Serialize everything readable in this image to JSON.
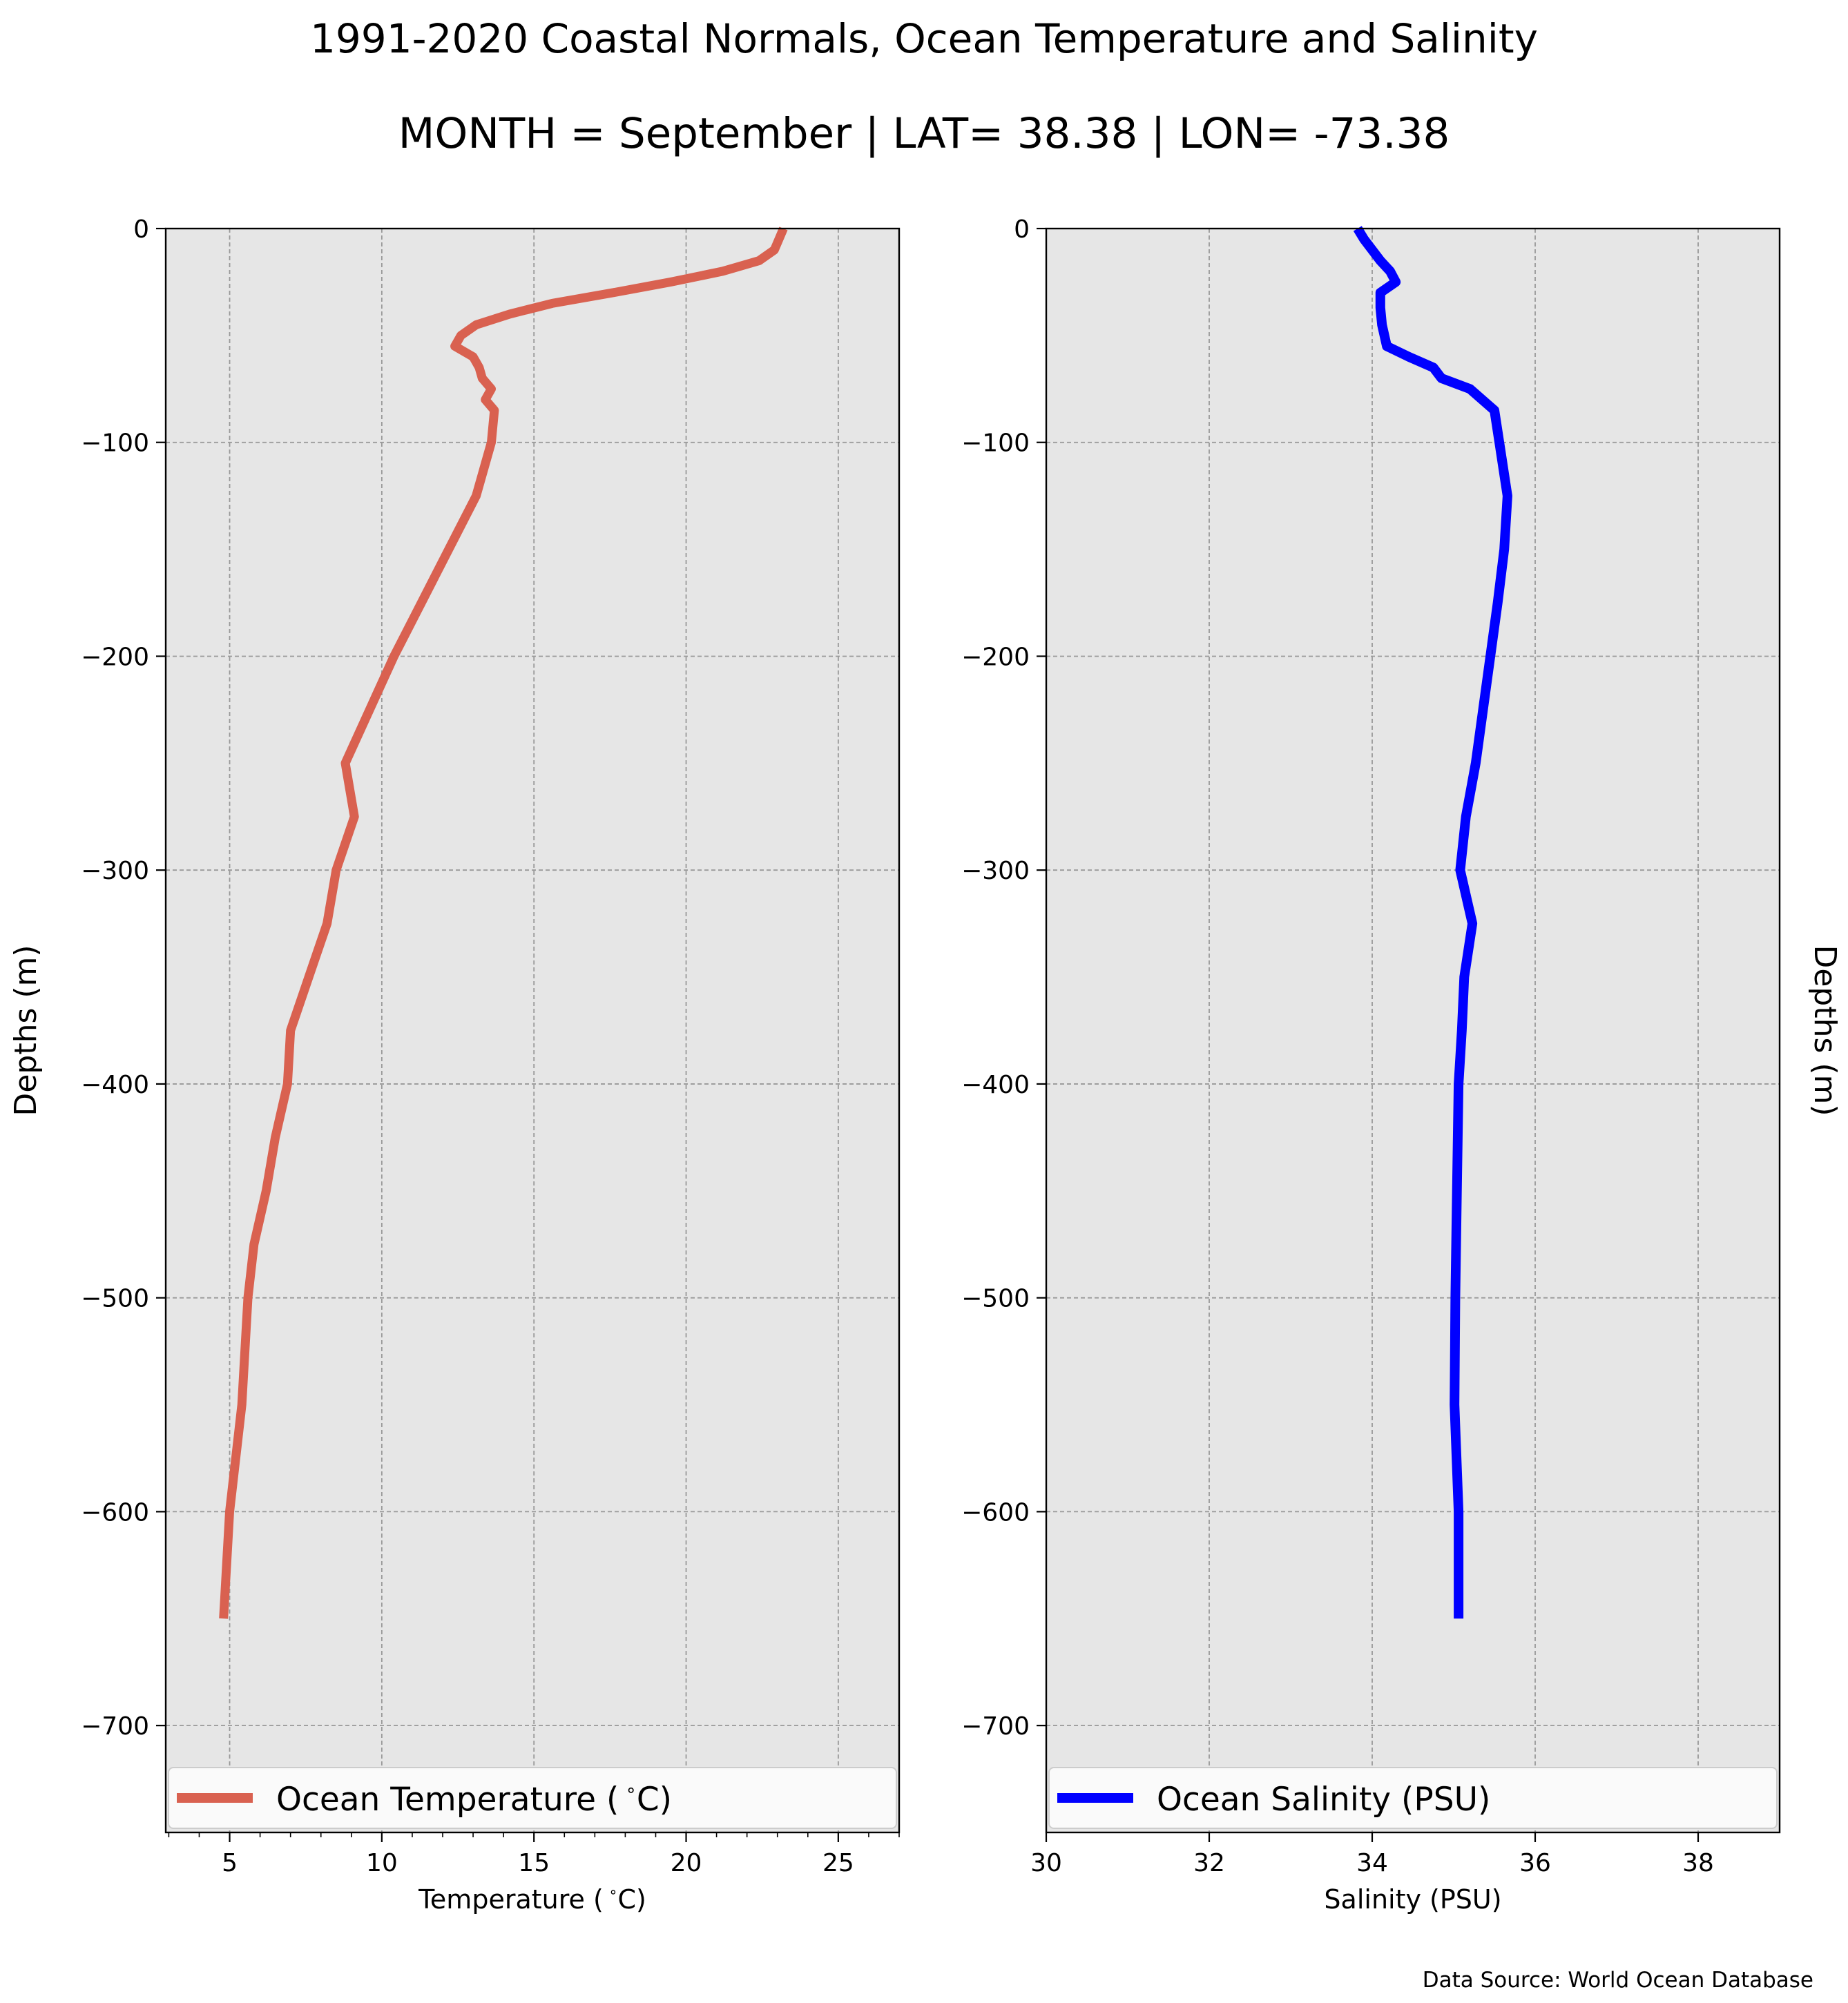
{
  "figure": {
    "title": "1991-2020 Coastal Normals, Ocean Temperature and Salinity",
    "subtitle": "MONTH = September | LAT= 38.38 | LON= -73.38",
    "source": "Data Source: World Ocean Database"
  },
  "colors": {
    "temperature": "#d96150",
    "salinity": "#0000ff",
    "panel_background": "#e6e6e6",
    "grid": "#999999"
  },
  "chart_data": [
    {
      "type": "line",
      "xlabel": "Temperature ($^\\circ$C)",
      "ylabel": "Depths (m)",
      "ylabel_side": "left",
      "xlim": [
        2.9,
        27.0
      ],
      "ylim": [
        -750,
        0
      ],
      "xticks": [
        5,
        10,
        15,
        20,
        25
      ],
      "xtick_labels": [
        "5",
        "10",
        "15",
        "20",
        "25"
      ],
      "xminor_ticks": [
        3,
        4,
        6,
        7,
        8,
        9,
        11,
        12,
        13,
        14,
        16,
        17,
        18,
        19,
        21,
        22,
        23,
        24,
        26,
        27
      ],
      "yticks": [
        0,
        -100,
        -200,
        -300,
        -400,
        -500,
        -600,
        -700
      ],
      "ytick_labels": [
        "0",
        "−100",
        "−200",
        "−300",
        "−400",
        "−500",
        "−600",
        "−700"
      ],
      "grid": true,
      "legend_position": "bottom",
      "legend_label": "Ocean Temperature ($^\\circ$C)",
      "series": [
        {
          "name": "Ocean Temperature ($^\\circ$C)",
          "color": "#d96150",
          "points": [
            [
              23.2,
              0
            ],
            [
              22.9,
              -10
            ],
            [
              22.4,
              -15
            ],
            [
              21.2,
              -20
            ],
            [
              19.5,
              -25
            ],
            [
              17.6,
              -30
            ],
            [
              15.6,
              -35
            ],
            [
              14.2,
              -40
            ],
            [
              13.1,
              -45
            ],
            [
              12.6,
              -50
            ],
            [
              12.4,
              -55
            ],
            [
              13.0,
              -60
            ],
            [
              13.2,
              -65
            ],
            [
              13.3,
              -70
            ],
            [
              13.6,
              -75
            ],
            [
              13.4,
              -80
            ],
            [
              13.7,
              -85
            ],
            [
              13.6,
              -100
            ],
            [
              13.1,
              -125
            ],
            [
              12.2,
              -150
            ],
            [
              11.3,
              -175
            ],
            [
              10.4,
              -200
            ],
            [
              9.6,
              -225
            ],
            [
              8.8,
              -250
            ],
            [
              9.1,
              -275
            ],
            [
              8.5,
              -300
            ],
            [
              8.2,
              -325
            ],
            [
              7.6,
              -350
            ],
            [
              7.0,
              -375
            ],
            [
              6.9,
              -400
            ],
            [
              6.5,
              -425
            ],
            [
              6.2,
              -450
            ],
            [
              5.8,
              -475
            ],
            [
              5.6,
              -500
            ],
            [
              5.4,
              -550
            ],
            [
              5.0,
              -600
            ],
            [
              4.8,
              -650
            ]
          ]
        }
      ]
    },
    {
      "type": "line",
      "xlabel": "Salinity (PSU)",
      "ylabel": "Depths (m)",
      "ylabel_side": "right",
      "xlim": [
        30,
        39
      ],
      "ylim": [
        -750,
        0
      ],
      "xticks": [
        30,
        32,
        34,
        36,
        38
      ],
      "xtick_labels": [
        "30",
        "32",
        "34",
        "36",
        "38"
      ],
      "xminor_ticks": [],
      "yticks": [
        0,
        -100,
        -200,
        -300,
        -400,
        -500,
        -600,
        -700
      ],
      "ytick_labels": [
        "0",
        "−100",
        "−200",
        "−300",
        "−400",
        "−500",
        "−600",
        "−700"
      ],
      "grid": true,
      "legend_position": "bottom",
      "legend_label": "Ocean Salinity (PSU)",
      "series": [
        {
          "name": "Ocean Salinity (PSU)",
          "color": "#0000ff",
          "points": [
            [
              33.82,
              0
            ],
            [
              33.9,
              -5
            ],
            [
              34.0,
              -10
            ],
            [
              34.1,
              -15
            ],
            [
              34.22,
              -20
            ],
            [
              34.29,
              -25
            ],
            [
              34.1,
              -30
            ],
            [
              34.1,
              -37
            ],
            [
              34.12,
              -45
            ],
            [
              34.18,
              -55
            ],
            [
              34.45,
              -60
            ],
            [
              34.75,
              -65
            ],
            [
              34.85,
              -70
            ],
            [
              35.2,
              -75
            ],
            [
              35.5,
              -85
            ],
            [
              35.56,
              -100
            ],
            [
              35.66,
              -125
            ],
            [
              35.62,
              -150
            ],
            [
              35.54,
              -175
            ],
            [
              35.45,
              -200
            ],
            [
              35.36,
              -225
            ],
            [
              35.27,
              -250
            ],
            [
              35.15,
              -275
            ],
            [
              35.08,
              -300
            ],
            [
              35.23,
              -325
            ],
            [
              35.13,
              -350
            ],
            [
              35.1,
              -375
            ],
            [
              35.06,
              -400
            ],
            [
              35.04,
              -450
            ],
            [
              35.02,
              -500
            ],
            [
              35.01,
              -550
            ],
            [
              35.06,
              -600
            ],
            [
              35.06,
              -650
            ]
          ]
        }
      ]
    }
  ]
}
